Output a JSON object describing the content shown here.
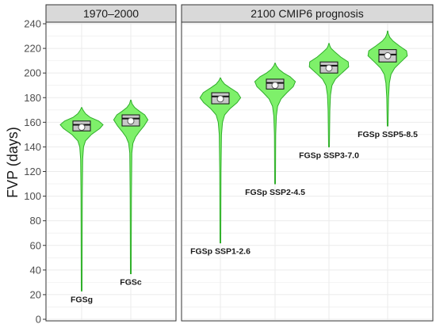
{
  "chart_data": {
    "type": "violin",
    "ylabel": "FVP (days)",
    "ylim": [
      0,
      240
    ],
    "yticks": [
      0,
      20,
      40,
      60,
      80,
      100,
      120,
      140,
      160,
      180,
      200,
      220,
      240
    ],
    "grid": true,
    "colors": {
      "violin_fill": "#7ef06a",
      "violin_stroke": "#2fae2a",
      "box_fill": "#c8c8c8",
      "strip_fill": "#d9d9d9"
    },
    "panels": [
      {
        "title": "1970–2000",
        "violins": [
          {
            "label": "FGSg",
            "min": 23,
            "q1": 153,
            "median": 158,
            "q3": 161,
            "mean": 156,
            "max": 172,
            "density": [
              [
                23,
                0.02
              ],
              [
                100,
                0.03
              ],
              [
                130,
                0.05
              ],
              [
                140,
                0.09
              ],
              [
                145,
                0.18
              ],
              [
                150,
                0.45
              ],
              [
                155,
                0.85
              ],
              [
                158,
                1.0
              ],
              [
                161,
                0.8
              ],
              [
                164,
                0.4
              ],
              [
                167,
                0.18
              ],
              [
                170,
                0.06
              ],
              [
                172,
                0.01
              ]
            ]
          },
          {
            "label": "FGSc",
            "min": 37,
            "q1": 157,
            "median": 163,
            "q3": 166,
            "mean": 161,
            "max": 178,
            "density": [
              [
                37,
                0.02
              ],
              [
                100,
                0.03
              ],
              [
                135,
                0.05
              ],
              [
                143,
                0.1
              ],
              [
                148,
                0.22
              ],
              [
                152,
                0.38
              ],
              [
                157,
                0.62
              ],
              [
                162,
                0.8
              ],
              [
                166,
                0.65
              ],
              [
                169,
                0.4
              ],
              [
                172,
                0.18
              ],
              [
                175,
                0.06
              ],
              [
                178,
                0.01
              ]
            ]
          }
        ]
      },
      {
        "title": "2100 CMIP6 prognosis",
        "violins": [
          {
            "label": "FGSp SSP1-2.6",
            "min": 62,
            "q1": 175,
            "median": 181,
            "q3": 184,
            "mean": 179,
            "max": 196,
            "density": [
              [
                62,
                0.02
              ],
              [
                120,
                0.03
              ],
              [
                150,
                0.05
              ],
              [
                160,
                0.1
              ],
              [
                166,
                0.2
              ],
              [
                171,
                0.45
              ],
              [
                176,
                0.78
              ],
              [
                180,
                0.95
              ],
              [
                184,
                0.8
              ],
              [
                188,
                0.45
              ],
              [
                191,
                0.2
              ],
              [
                194,
                0.06
              ],
              [
                196,
                0.01
              ]
            ]
          },
          {
            "label": "FGSp SSP2-4.5",
            "min": 110,
            "q1": 187,
            "median": 192,
            "q3": 195,
            "mean": 190,
            "max": 208,
            "density": [
              [
                110,
                0.02
              ],
              [
                150,
                0.03
              ],
              [
                165,
                0.06
              ],
              [
                173,
                0.12
              ],
              [
                179,
                0.28
              ],
              [
                184,
                0.55
              ],
              [
                189,
                0.85
              ],
              [
                193,
                0.95
              ],
              [
                197,
                0.7
              ],
              [
                200,
                0.4
              ],
              [
                203,
                0.18
              ],
              [
                206,
                0.05
              ],
              [
                208,
                0.01
              ]
            ]
          },
          {
            "label": "FGSp SSP3-7.0",
            "min": 140,
            "q1": 200,
            "median": 206,
            "q3": 209,
            "mean": 204,
            "max": 224,
            "density": [
              [
                140,
                0.02
              ],
              [
                170,
                0.04
              ],
              [
                182,
                0.07
              ],
              [
                190,
                0.14
              ],
              [
                195,
                0.3
              ],
              [
                200,
                0.6
              ],
              [
                205,
                0.92
              ],
              [
                209,
                0.9
              ],
              [
                213,
                0.55
              ],
              [
                217,
                0.28
              ],
              [
                220,
                0.1
              ],
              [
                222,
                0.04
              ],
              [
                224,
                0.01
              ]
            ]
          },
          {
            "label": "FGSp SSP5-8.5",
            "min": 157,
            "q1": 209,
            "median": 215,
            "q3": 219,
            "mean": 214,
            "max": 234,
            "density": [
              [
                157,
                0.02
              ],
              [
                180,
                0.04
              ],
              [
                192,
                0.08
              ],
              [
                199,
                0.16
              ],
              [
                204,
                0.33
              ],
              [
                209,
                0.62
              ],
              [
                214,
                0.92
              ],
              [
                218,
                0.88
              ],
              [
                222,
                0.55
              ],
              [
                226,
                0.25
              ],
              [
                229,
                0.1
              ],
              [
                232,
                0.03
              ],
              [
                234,
                0.01
              ]
            ]
          }
        ]
      }
    ]
  }
}
